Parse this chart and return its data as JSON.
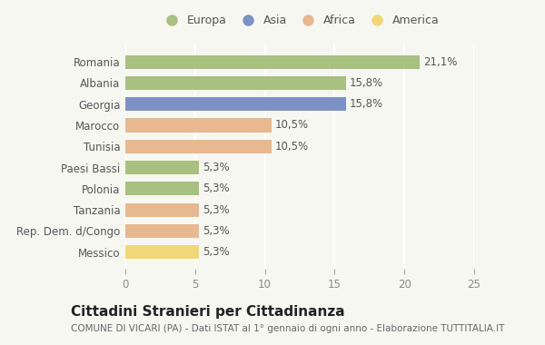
{
  "categories": [
    "Romania",
    "Albania",
    "Georgia",
    "Marocco",
    "Tunisia",
    "Paesi Bassi",
    "Polonia",
    "Tanzania",
    "Rep. Dem. d/Congo",
    "Messico"
  ],
  "values": [
    21.1,
    15.8,
    15.8,
    10.5,
    10.5,
    5.3,
    5.3,
    5.3,
    5.3,
    5.3
  ],
  "labels": [
    "21,1%",
    "15,8%",
    "15,8%",
    "10,5%",
    "10,5%",
    "5,3%",
    "5,3%",
    "5,3%",
    "5,3%",
    "5,3%"
  ],
  "colors": [
    "#a8c080",
    "#a8c080",
    "#7b93c4",
    "#e8b890",
    "#e8b890",
    "#a8c080",
    "#a8c080",
    "#e8b890",
    "#e8b890",
    "#f0d878"
  ],
  "legend_labels": [
    "Europa",
    "Asia",
    "Africa",
    "America"
  ],
  "legend_colors": [
    "#a8c080",
    "#7b93c4",
    "#e8b890",
    "#f0d878"
  ],
  "title": "Cittadini Stranieri per Cittadinanza",
  "subtitle": "COMUNE DI VICARI (PA) - Dati ISTAT al 1° gennaio di ogni anno - Elaborazione TUTTITALIA.IT",
  "xlim": [
    0,
    25
  ],
  "xticks": [
    0,
    5,
    10,
    15,
    20,
    25
  ],
  "background_color": "#f7f7f2",
  "grid_color": "#ffffff",
  "bar_label_fontsize": 8.5,
  "category_fontsize": 8.5,
  "title_fontsize": 11,
  "subtitle_fontsize": 7.5
}
